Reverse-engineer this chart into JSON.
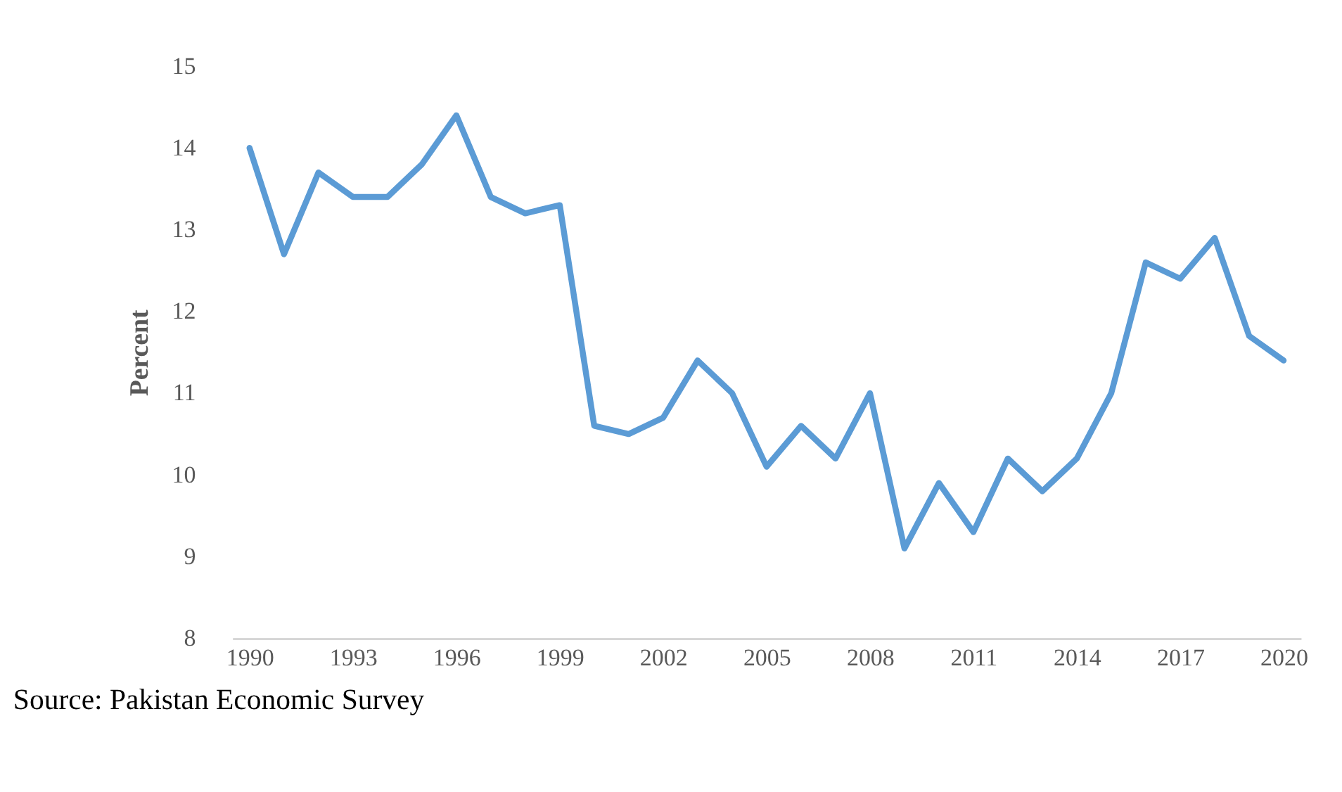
{
  "chart_data": {
    "type": "line",
    "ylabel": "Percent",
    "annotations": [
      "Source: Pakistan Economic Survey"
    ],
    "x": [
      1990,
      1991,
      1992,
      1993,
      1994,
      1995,
      1996,
      1997,
      1998,
      1999,
      2000,
      2001,
      2002,
      2003,
      2004,
      2005,
      2006,
      2007,
      2008,
      2009,
      2010,
      2011,
      2012,
      2013,
      2014,
      2015,
      2016,
      2017,
      2018,
      2019,
      2020
    ],
    "series": [
      {
        "color": "#5b9bd5",
        "values": [
          14.0,
          12.7,
          13.7,
          13.4,
          13.4,
          13.8,
          14.4,
          13.4,
          13.2,
          13.3,
          10.6,
          10.5,
          10.7,
          11.4,
          11.0,
          10.1,
          10.6,
          10.2,
          11.0,
          9.1,
          9.9,
          9.3,
          10.2,
          9.8,
          10.2,
          11.0,
          12.6,
          12.4,
          12.9,
          11.7,
          11.4
        ]
      }
    ],
    "xlim": [
      1989.5,
      2020.5
    ],
    "xticks": [
      1990,
      1993,
      1996,
      1999,
      2002,
      2005,
      2008,
      2011,
      2014,
      2017,
      2020
    ],
    "ylim": [
      8,
      15
    ],
    "yticks": [
      8,
      9,
      10,
      11,
      12,
      13,
      14,
      15
    ],
    "grid": false,
    "marker": "none",
    "line_style": "solid"
  }
}
